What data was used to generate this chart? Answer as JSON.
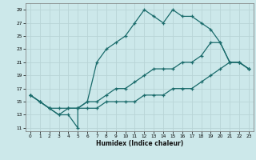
{
  "xlabel": "Humidex (Indice chaleur)",
  "background_color": "#cce8ea",
  "grid_color": "#b8d4d6",
  "line_color": "#1a6b6b",
  "xlim": [
    -0.5,
    23.5
  ],
  "ylim": [
    10.5,
    30
  ],
  "xtick_vals": [
    0,
    1,
    2,
    3,
    4,
    5,
    6,
    7,
    8,
    9,
    10,
    11,
    12,
    13,
    14,
    15,
    16,
    17,
    18,
    19,
    20,
    21,
    22,
    23
  ],
  "ytick_vals": [
    11,
    13,
    15,
    17,
    19,
    21,
    23,
    25,
    27,
    29
  ],
  "line1_x": [
    0,
    1,
    2,
    3,
    4,
    5,
    5,
    6,
    7,
    8,
    9,
    10,
    11,
    12,
    13,
    14,
    15,
    16,
    17,
    18,
    19,
    20,
    21,
    22,
    23
  ],
  "line1_y": [
    16,
    15,
    14,
    13,
    13,
    11,
    14,
    15,
    21,
    23,
    24,
    25,
    27,
    29,
    28,
    27,
    29,
    28,
    28,
    27,
    26,
    24,
    21,
    21,
    20
  ],
  "line2_x": [
    0,
    1,
    2,
    3,
    4,
    5,
    6,
    7,
    8,
    9,
    10,
    11,
    12,
    13,
    14,
    15,
    16,
    17,
    18,
    19,
    20,
    21,
    22,
    23
  ],
  "line2_y": [
    16,
    15,
    14,
    13,
    14,
    14,
    15,
    15,
    16,
    17,
    17,
    18,
    19,
    20,
    20,
    20,
    21,
    21,
    22,
    24,
    24,
    21,
    21,
    20
  ],
  "line3_x": [
    0,
    1,
    2,
    3,
    4,
    5,
    6,
    7,
    8,
    9,
    10,
    11,
    12,
    13,
    14,
    15,
    16,
    17,
    18,
    19,
    20,
    21,
    22,
    23
  ],
  "line3_y": [
    16,
    15,
    14,
    14,
    14,
    14,
    14,
    14,
    15,
    15,
    15,
    15,
    16,
    16,
    16,
    17,
    17,
    17,
    18,
    19,
    20,
    21,
    21,
    20
  ]
}
